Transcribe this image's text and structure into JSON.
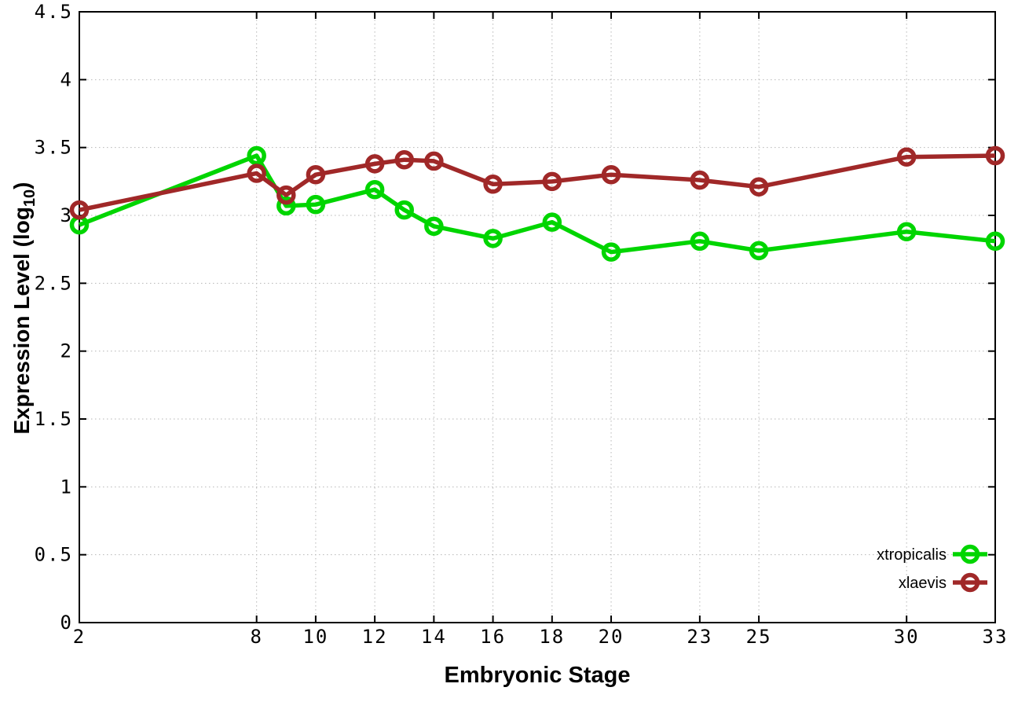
{
  "chart_data": {
    "type": "line",
    "title": "",
    "xlabel": "Embryonic Stage",
    "ylabel": "Expression Level (log10)",
    "ylabel_parts": {
      "main": "Expression Level (log",
      "sub": "10",
      "end": ")"
    },
    "x_axis": {
      "ticks": [
        "2",
        "8",
        "10",
        "12",
        "14",
        "16",
        "18",
        "20",
        "23",
        "25",
        "30",
        "33"
      ],
      "range": [
        2,
        33
      ]
    },
    "y_axis": {
      "ticks": [
        "0",
        "0.5",
        "1",
        "1.5",
        "2",
        "2.5",
        "3",
        "3.5",
        "4",
        "4.5"
      ],
      "range": [
        0,
        4.5
      ]
    },
    "grid": true,
    "x": [
      2,
      8,
      9,
      10,
      12,
      13,
      14,
      16,
      18,
      20,
      23,
      25,
      30,
      33
    ],
    "series": [
      {
        "name": "xtropicalis",
        "color": "#00d500",
        "marker": "open-circle",
        "values": [
          2.93,
          3.44,
          3.07,
          3.08,
          3.19,
          3.04,
          2.92,
          2.83,
          2.95,
          2.73,
          2.81,
          2.74,
          2.88,
          2.81
        ]
      },
      {
        "name": "xlaevis",
        "color": "#a02828",
        "marker": "open-circle",
        "values": [
          3.04,
          3.31,
          3.15,
          3.3,
          3.38,
          3.41,
          3.4,
          3.23,
          3.25,
          3.3,
          3.26,
          3.21,
          3.43,
          3.44
        ]
      }
    ],
    "legend": {
      "position": "inside-bottom-right",
      "entries": [
        "xtropicalis",
        "xlaevis"
      ]
    },
    "colors": {
      "grid": "#b6b6b6",
      "border": "#000000",
      "text": "#000000",
      "background": "#ffffff"
    }
  }
}
